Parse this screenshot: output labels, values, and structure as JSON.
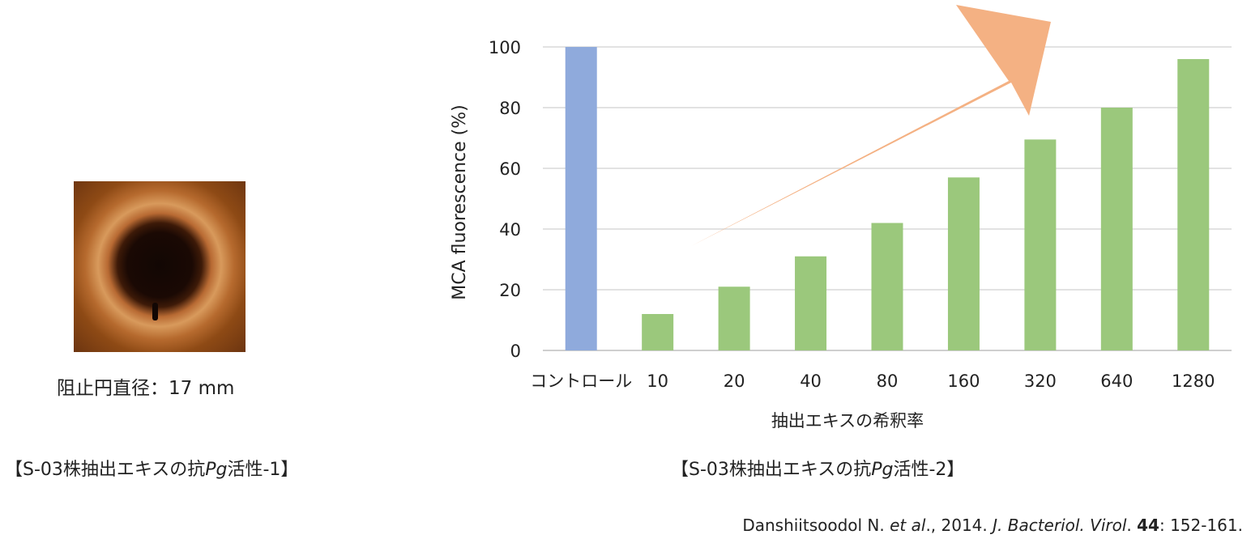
{
  "photo": {
    "caption": "阻止円直径：17 mm"
  },
  "captions": {
    "left": {
      "prefix": "【S-03株抽出エキスの抗",
      "italic": "Pg",
      "suffix": "活性-1】"
    },
    "right": {
      "prefix": "【S-03株抽出エキスの抗",
      "italic": "Pg",
      "suffix": "活性-2】"
    }
  },
  "reference": {
    "authors": "Danshiitsoodol N. ",
    "etal": "et al",
    "year": "., 2014. ",
    "journal": "J. Bacteriol. Virol",
    "dot": ". ",
    "volume": "44",
    "pages": ": 152-161."
  },
  "chart_data": {
    "type": "bar",
    "title": "",
    "xlabel": "抽出エキスの希釈率",
    "ylabel": "MCA fluorescence (%)",
    "ylim": [
      0,
      100
    ],
    "yticks": [
      0,
      20,
      40,
      60,
      80,
      100
    ],
    "grid": true,
    "categories": [
      "コントロール",
      "10",
      "20",
      "40",
      "80",
      "160",
      "320",
      "640",
      "1280"
    ],
    "values": [
      100,
      12,
      21,
      31,
      42,
      57,
      69.5,
      80,
      96
    ],
    "colors": [
      "#8faadc",
      "#9bc87c",
      "#9bc87c",
      "#9bc87c",
      "#9bc87c",
      "#9bc87c",
      "#9bc87c",
      "#9bc87c",
      "#9bc87c"
    ],
    "annotation": {
      "type": "trend-arrow",
      "direction": "increasing",
      "color": "#f4b183"
    }
  }
}
